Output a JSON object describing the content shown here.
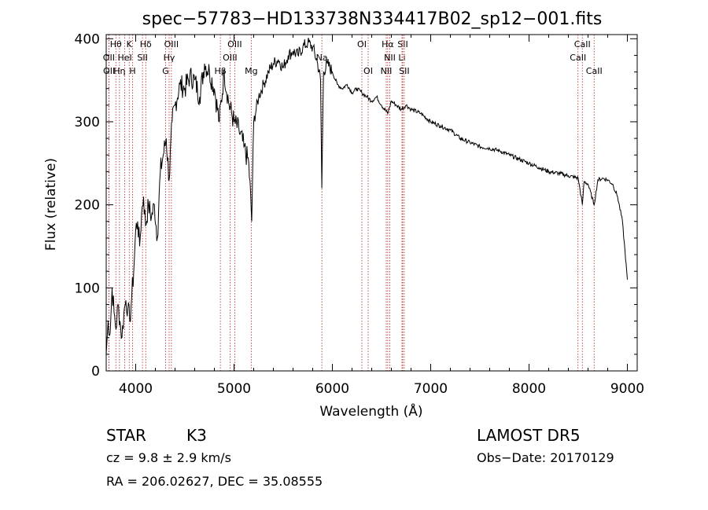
{
  "chart_data": {
    "type": "line",
    "title": "spec−57783−HD133738N334417B02_sp12−001.fits",
    "xlabel": "Wavelength (Å)",
    "ylabel": "Flux (relative)",
    "xlim": [
      3700,
      9100
    ],
    "ylim": [
      0,
      405
    ],
    "xticks": [
      4000,
      5000,
      6000,
      7000,
      8000,
      9000
    ],
    "yticks": [
      0,
      100,
      200,
      300,
      400
    ],
    "grid": false,
    "series": [
      {
        "x": [
          3700,
          3720,
          3740,
          3760,
          3780,
          3800,
          3820,
          3840,
          3860,
          3880,
          3900,
          3920,
          3940,
          3960,
          3980,
          4000,
          4020,
          4040,
          4060,
          4080,
          4100,
          4130,
          4160,
          4190,
          4220,
          4250,
          4280,
          4310,
          4340,
          4370,
          4400,
          4450,
          4500,
          4550,
          4600,
          4650,
          4700,
          4750,
          4800,
          4850,
          4900,
          4950,
          5000,
          5050,
          5100,
          5150,
          5180,
          5200,
          5250,
          5300,
          5350,
          5400,
          5450,
          5500,
          5550,
          5600,
          5650,
          5700,
          5750,
          5800,
          5850,
          5880,
          5893,
          5910,
          5950,
          6000,
          6050,
          6100,
          6150,
          6200,
          6250,
          6300,
          6350,
          6400,
          6450,
          6500,
          6563,
          6600,
          6650,
          6700,
          6750,
          6800,
          6900,
          7000,
          7100,
          7200,
          7300,
          7400,
          7500,
          7600,
          7700,
          7800,
          7900,
          8000,
          8100,
          8200,
          8300,
          8400,
          8500,
          8542,
          8560,
          8600,
          8662,
          8700,
          8750,
          8800,
          8850,
          8900,
          8950,
          9000
        ],
        "y": [
          20,
          60,
          45,
          100,
          70,
          50,
          80,
          60,
          40,
          70,
          85,
          75,
          60,
          90,
          120,
          170,
          180,
          150,
          190,
          210,
          175,
          200,
          185,
          200,
          160,
          240,
          260,
          280,
          230,
          300,
          320,
          345,
          340,
          355,
          350,
          330,
          370,
          360,
          340,
          300,
          360,
          320,
          300,
          290,
          270,
          250,
          180,
          300,
          330,
          345,
          360,
          370,
          375,
          365,
          380,
          385,
          380,
          390,
          395,
          390,
          370,
          350,
          220,
          360,
          370,
          360,
          345,
          340,
          345,
          335,
          340,
          335,
          330,
          325,
          330,
          320,
          310,
          325,
          320,
          315,
          320,
          315,
          310,
          300,
          295,
          290,
          280,
          275,
          270,
          268,
          265,
          260,
          255,
          250,
          245,
          240,
          238,
          235,
          232,
          200,
          228,
          225,
          200,
          230,
          232,
          230,
          225,
          210,
          180,
          110
        ]
      }
    ],
    "lines": [
      {
        "name": "Hθ",
        "x": 3798,
        "row": 0
      },
      {
        "name": "K",
        "x": 3934,
        "row": 0
      },
      {
        "name": "Hδ",
        "x": 4102,
        "row": 0
      },
      {
        "name": "OIII",
        "x": 4363,
        "row": 0
      },
      {
        "name": "OIII",
        "x": 5007,
        "row": 0
      },
      {
        "name": "OI",
        "x": 6300,
        "row": 0
      },
      {
        "name": "Hα",
        "x": 6563,
        "row": 0
      },
      {
        "name": "SII",
        "x": 6716,
        "row": 0
      },
      {
        "name": "CaII",
        "x": 8542,
        "row": 0
      },
      {
        "name": "OII",
        "x": 3727,
        "row": 1
      },
      {
        "name": "HeI",
        "x": 3889,
        "row": 1
      },
      {
        "name": "SII",
        "x": 4069,
        "row": 1
      },
      {
        "name": "Hγ",
        "x": 4340,
        "row": 1
      },
      {
        "name": "OIII",
        "x": 4959,
        "row": 1
      },
      {
        "name": "NII",
        "x": 6584,
        "row": 1
      },
      {
        "name": "Li",
        "x": 6708,
        "row": 1
      },
      {
        "name": "CaII",
        "x": 8498,
        "row": 1
      },
      {
        "name": "OII",
        "x": 3729,
        "row": 2
      },
      {
        "name": "Hη",
        "x": 3835,
        "row": 2
      },
      {
        "name": "H",
        "x": 3968,
        "row": 2
      },
      {
        "name": "G",
        "x": 4304,
        "row": 2
      },
      {
        "name": "Hβ",
        "x": 4861,
        "row": 2
      },
      {
        "name": "Mg",
        "x": 5175,
        "row": 2
      },
      {
        "name": "Na",
        "x": 5893,
        "row": 1.3
      },
      {
        "name": "OI",
        "x": 6364,
        "row": 2
      },
      {
        "name": "NII",
        "x": 6548,
        "row": 2
      },
      {
        "name": "SII",
        "x": 6731,
        "row": 2
      },
      {
        "name": "CaII",
        "x": 8662,
        "row": 2
      }
    ]
  },
  "info": {
    "class_label": "STAR",
    "subclass": "K3",
    "survey": "LAMOST  DR5",
    "cz": "cz = 9.8 ± 2.9 km/s",
    "obs_date": "Obs−Date: 20170129",
    "radec": "RA = 206.02627, DEC =  35.08555"
  }
}
